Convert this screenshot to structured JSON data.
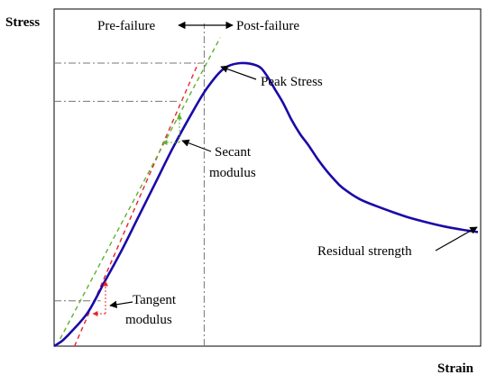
{
  "chart_data": {
    "type": "line",
    "title": "",
    "xlabel": "Strain",
    "ylabel": "Stress",
    "xlim": [
      0,
      100
    ],
    "ylim": [
      0,
      100
    ],
    "grid": false,
    "series": [
      {
        "name": "",
        "color": "#1a0aa8",
        "x": [
          0,
          2,
          4,
          8,
          12,
          16,
          20,
          24,
          28,
          32,
          36,
          40,
          44,
          48,
          50,
          52,
          54,
          56,
          58,
          60,
          62,
          64,
          66,
          68,
          72,
          76,
          80,
          84,
          88,
          92,
          96,
          100
        ],
        "y": [
          0,
          2,
          5,
          12,
          23,
          34,
          46,
          58,
          70,
          81,
          91,
          98,
          100,
          99,
          96,
          91,
          86,
          80,
          75,
          71,
          66.5,
          62.5,
          59,
          56,
          52,
          49.5,
          47.3,
          45.3,
          43.7,
          42.3,
          41.2,
          40.3
        ]
      }
    ],
    "reference_lines": [
      {
        "name": "tangent-line",
        "color": "#e8242a",
        "style": "dashed",
        "x": [
          4.8,
          34
        ],
        "y": [
          0,
          100
        ]
      },
      {
        "name": "secant-line",
        "color": "#5fb030",
        "style": "dashed",
        "x": [
          0.5,
          39.2
        ],
        "y": [
          0,
          109
        ]
      },
      {
        "name": "failure-divider",
        "color": "#777777",
        "style": "dashdot",
        "x": [
          35.4,
          35.4
        ],
        "y": [
          0,
          114
        ]
      },
      {
        "name": "peak-level",
        "color": "#777777",
        "style": "dashdot",
        "x": [
          0,
          35.4
        ],
        "y": [
          100,
          100
        ]
      },
      {
        "name": "upper-level",
        "color": "#777777",
        "style": "dashdot",
        "x": [
          0,
          29.6
        ],
        "y": [
          86.5,
          86.5
        ]
      },
      {
        "name": "lower-level",
        "color": "#777777",
        "style": "dashdot",
        "x": [
          0,
          11
        ],
        "y": [
          16,
          16
        ]
      }
    ],
    "annotations": {
      "pre_failure": "Pre-failure",
      "post_failure": "Post-failure",
      "peak_stress": "Peak Stress",
      "secant_line1": "Secant",
      "secant_line2": "modulus",
      "tangent_line1": "Tangent",
      "tangent_line2": "modulus",
      "residual_strength": "Residual strength"
    }
  }
}
